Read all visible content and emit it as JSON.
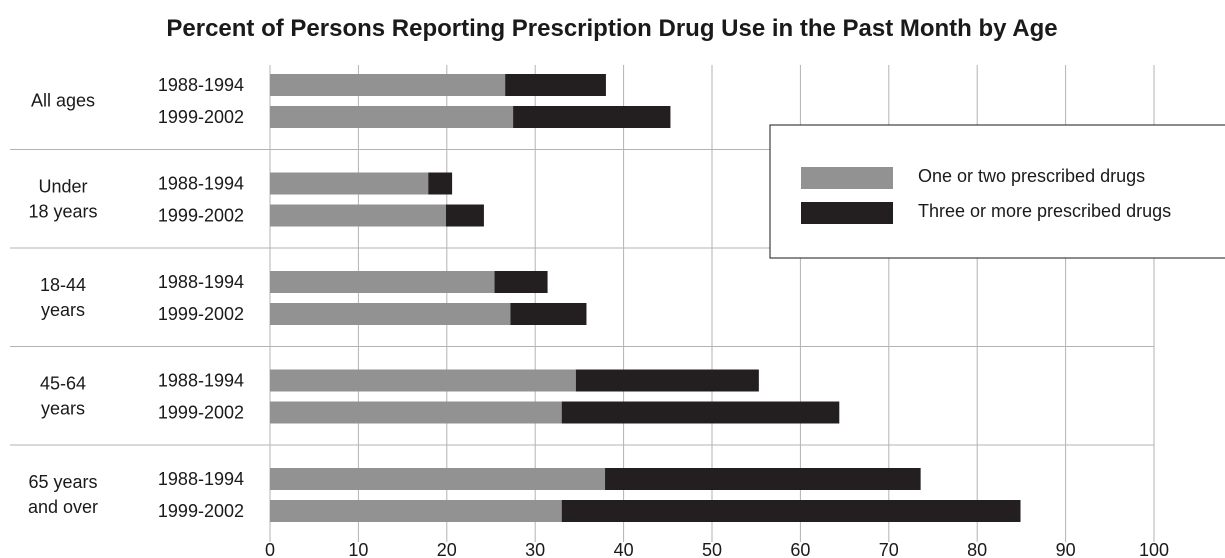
{
  "chart_data": {
    "type": "bar",
    "orientation": "horizontal",
    "stacked": true,
    "title": "Percent of Persons Reporting Prescription Drug Use in the Past Month by Age",
    "xlabel": "",
    "ylabel": "",
    "xlim": [
      0,
      100
    ],
    "x_ticks": [
      "0",
      "10",
      "20",
      "30",
      "40",
      "50",
      "60",
      "70",
      "80",
      "90",
      "100"
    ],
    "grid": true,
    "legend_position": "top-right",
    "series": [
      {
        "name": "One or two prescribed drugs",
        "color": "#929292"
      },
      {
        "name": "Three or more prescribed drugs",
        "color": "#231f20"
      }
    ],
    "groups": [
      {
        "label_lines": [
          "All ages"
        ],
        "bars": [
          {
            "period": "1988-1994",
            "values": [
              26.6,
              11.4
            ]
          },
          {
            "period": "1999-2002",
            "values": [
              27.5,
              17.8
            ]
          }
        ]
      },
      {
        "label_lines": [
          "Under",
          "18 years"
        ],
        "bars": [
          {
            "period": "1988-1994",
            "values": [
              17.9,
              2.7
            ]
          },
          {
            "period": "1999-2002",
            "values": [
              19.9,
              4.3
            ]
          }
        ]
      },
      {
        "label_lines": [
          "18-44",
          "years"
        ],
        "bars": [
          {
            "period": "1988-1994",
            "values": [
              25.4,
              6.0
            ]
          },
          {
            "period": "1999-2002",
            "values": [
              27.2,
              8.6
            ]
          }
        ]
      },
      {
        "label_lines": [
          "45-64",
          "years"
        ],
        "bars": [
          {
            "period": "1988-1994",
            "values": [
              34.6,
              20.7
            ]
          },
          {
            "period": "1999-2002",
            "values": [
              33.0,
              31.4
            ]
          }
        ]
      },
      {
        "label_lines": [
          "65 years",
          "and over"
        ],
        "bars": [
          {
            "period": "1988-1994",
            "values": [
              37.9,
              35.7
            ]
          },
          {
            "period": "1999-2002",
            "values": [
              33.0,
              51.9
            ]
          }
        ]
      }
    ]
  }
}
